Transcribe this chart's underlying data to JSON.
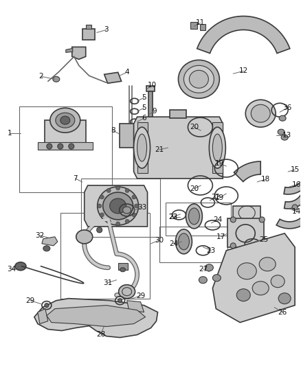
{
  "background": "#ffffff",
  "figsize": [
    4.38,
    5.33
  ],
  "dpi": 100,
  "gray1": "#3a3a3a",
  "gray2": "#666666",
  "gray3": "#999999",
  "gray4": "#bbbbbb",
  "gray5": "#cccccc",
  "gray6": "#e0e0e0",
  "lw_thick": 2.0,
  "lw_med": 1.2,
  "lw_thin": 0.8,
  "font_size": 7.5,
  "label_color": "#111111"
}
